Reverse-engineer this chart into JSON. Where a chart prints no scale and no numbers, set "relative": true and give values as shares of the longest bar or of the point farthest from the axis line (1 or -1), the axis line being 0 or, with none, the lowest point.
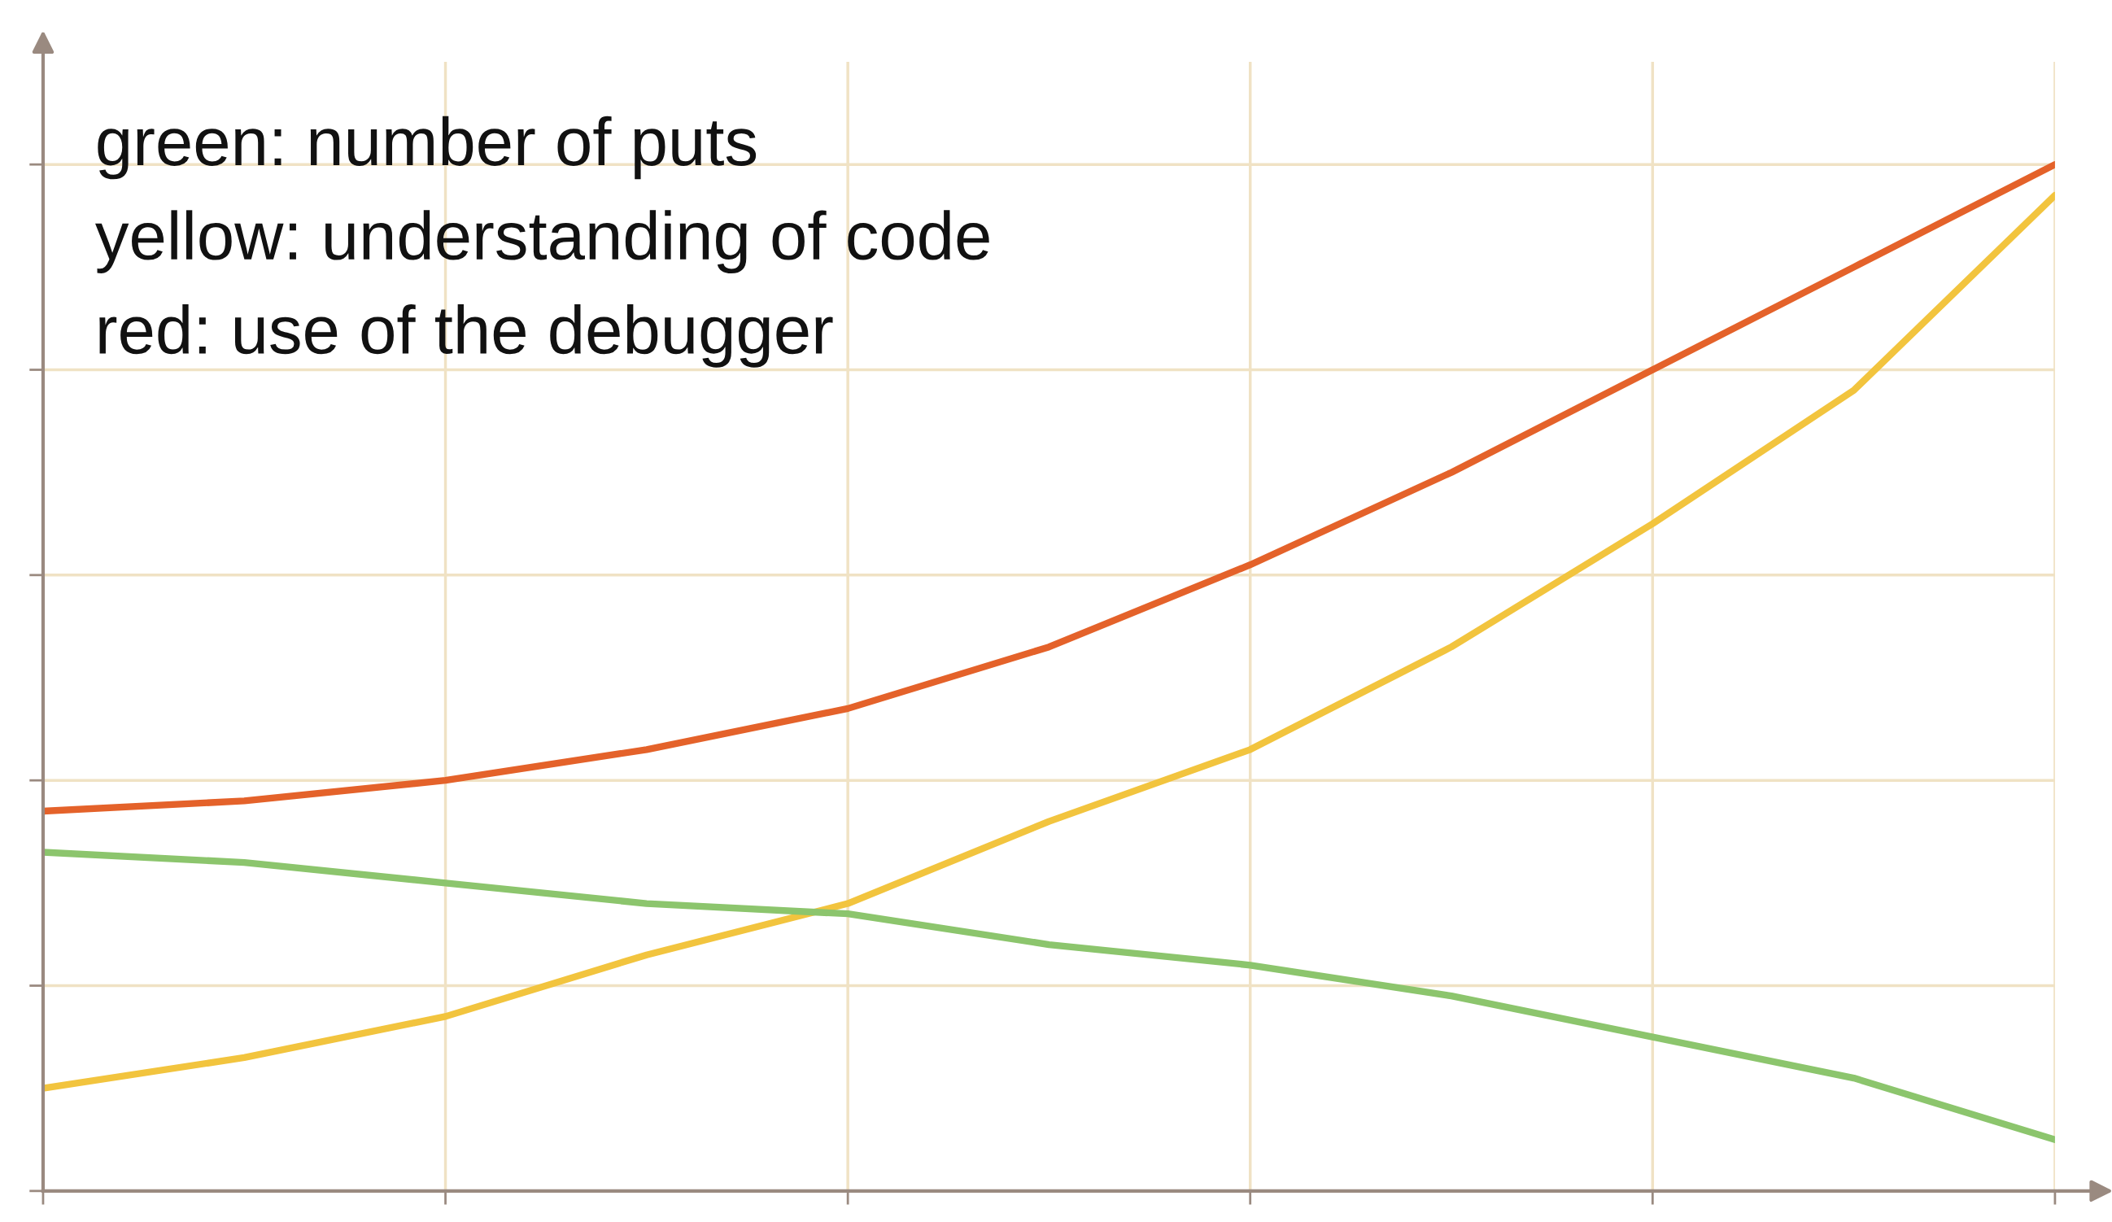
{
  "chart_data": {
    "type": "line",
    "relative": true,
    "grid": true,
    "categories": [
      null,
      null,
      null,
      null,
      null,
      null,
      null,
      null,
      null,
      null,
      null
    ],
    "series": [
      {
        "color": "#e4622a",
        "values": [
          0.37,
          0.38,
          0.4,
          0.43,
          0.47,
          0.53,
          0.61,
          0.7,
          0.8,
          0.9,
          1.0
        ]
      },
      {
        "color": "#f2c43e",
        "values": [
          0.1,
          0.13,
          0.17,
          0.23,
          0.28,
          0.36,
          0.43,
          0.53,
          0.65,
          0.78,
          0.97
        ]
      },
      {
        "color": "#8cc56d",
        "values": [
          0.33,
          0.32,
          0.3,
          0.28,
          0.27,
          0.24,
          0.22,
          0.19,
          0.15,
          0.11,
          0.05
        ]
      }
    ],
    "annotations": [
      "green: number of puts",
      "yellow: understanding of code",
      "red: use of the debugger"
    ]
  }
}
